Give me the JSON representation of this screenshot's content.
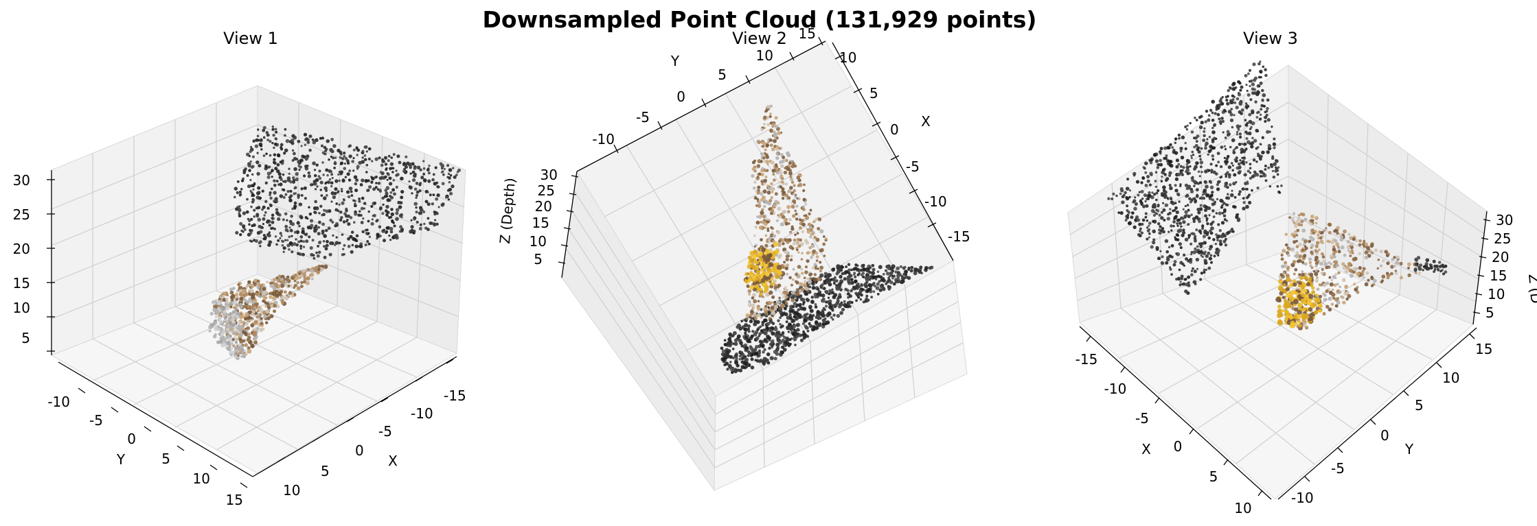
{
  "chart_data": {
    "type": "scatter",
    "title": "Downsampled Point Cloud (131,929 points)",
    "projection": "3d",
    "grid": true,
    "colors": {
      "dark": "#2b2b2b",
      "grey": "#b4b4b4",
      "tan": "#b08a60",
      "brown": "#7a5a3c",
      "yellow": "#e8b72a"
    },
    "views": [
      {
        "title": "View 1",
        "x_label": "X",
        "y_label": "Y",
        "z_label": "",
        "x_ticks": [
          "-15",
          "-10",
          "-5",
          "0",
          "5",
          "10"
        ],
        "y_ticks": [
          "-10",
          "-5",
          "0",
          "5",
          "10",
          "15"
        ],
        "z_ticks": [
          "30",
          "25",
          "20",
          "15",
          "10",
          "5"
        ]
      },
      {
        "title": "View 2",
        "x_label": "X",
        "y_label": "Y",
        "z_label": "Z (Depth)",
        "x_ticks": [
          "10",
          "5",
          "0",
          "-5",
          "-10",
          "-15"
        ],
        "y_ticks": [
          "-10",
          "-5",
          "0",
          "5",
          "10",
          "15"
        ],
        "z_ticks": [
          "30",
          "25",
          "20",
          "15",
          "10",
          "5"
        ]
      },
      {
        "title": "View 3",
        "x_label": "X",
        "y_label": "Y",
        "z_label": "Z (D",
        "x_ticks": [
          "-15",
          "-10",
          "-5",
          "0",
          "5",
          "10"
        ],
        "y_ticks": [
          "15",
          "10",
          "5",
          "0",
          "-5",
          "-10"
        ],
        "z_ticks": [
          "30",
          "25",
          "20",
          "15",
          "10",
          "5"
        ]
      }
    ]
  }
}
